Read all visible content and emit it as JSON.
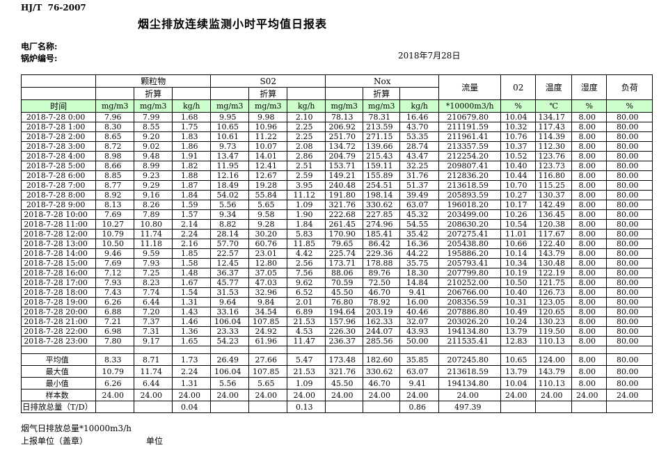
{
  "page": {
    "standard": "HJ/T  76-2007",
    "title": "烟尘排放连续监测小时平均值日报表",
    "plant_label": "电厂名称:",
    "boiler_label": "锅炉编号:",
    "date": "2018年7月28日"
  },
  "table": {
    "time_header": "时间",
    "groups": [
      {
        "label": "颗粒物",
        "sub": "折算"
      },
      {
        "label": "S02",
        "sub": "折算"
      },
      {
        "label": "Nox",
        "sub": "折算"
      }
    ],
    "single_cols": [
      {
        "label": "流量",
        "unit": "*10000m3/h"
      },
      {
        "label": "02",
        "unit": "%"
      },
      {
        "label": "温度",
        "unit": "℃"
      },
      {
        "label": "湿度",
        "unit": "%"
      },
      {
        "label": "负荷",
        "unit": "%"
      }
    ],
    "units": [
      "mg/m3",
      "mg/m3",
      "kg/h",
      "mg/m3",
      "mg/m3",
      "kg/h",
      "mg/m3",
      "mg/m3",
      "kg/h",
      "*10000m3/h",
      "%",
      "℃",
      "%",
      "%"
    ],
    "rows": [
      {
        "time": "2018-7-28 0:00",
        "values": [
          "7.96",
          "7.99",
          "1.68",
          "9.95",
          "9.98",
          "2.10",
          "78.13",
          "78.31",
          "16.46",
          "210679.80",
          "10.04",
          "134.17",
          "8.00",
          "80.00"
        ]
      },
      {
        "time": "2018-7-28 1:00",
        "values": [
          "8.30",
          "8.55",
          "1.75",
          "10.65",
          "10.96",
          "2.25",
          "206.92",
          "213.59",
          "43.70",
          "211191.59",
          "10.32",
          "117.43",
          "8.00",
          "80.00"
        ]
      },
      {
        "time": "2018-7-28 2:00",
        "values": [
          "8.65",
          "9.20",
          "1.83",
          "10.61",
          "11.22",
          "2.25",
          "251.70",
          "271.15",
          "53.35",
          "211961.41",
          "10.76",
          "114.39",
          "8.00",
          "80.00"
        ]
      },
      {
        "time": "2018-7-28 3:00",
        "values": [
          "8.72",
          "9.02",
          "1.86",
          "9.73",
          "10.07",
          "2.08",
          "134.72",
          "139.66",
          "28.74",
          "213357.59",
          "10.37",
          "112.30",
          "8.00",
          "80.00"
        ]
      },
      {
        "time": "2018-7-28 4:00",
        "values": [
          "8.98",
          "9.48",
          "1.91",
          "13.47",
          "14.01",
          "2.86",
          "204.79",
          "215.43",
          "43.47",
          "212254.20",
          "10.52",
          "123.76",
          "8.00",
          "80.00"
        ]
      },
      {
        "time": "2018-7-28 5:00",
        "values": [
          "8.66",
          "8.99",
          "1.82",
          "11.95",
          "12.41",
          "2.51",
          "153.71",
          "159.11",
          "32.25",
          "209807.41",
          "10.40",
          "123.73",
          "8.00",
          "80.00"
        ]
      },
      {
        "time": "2018-7-28 6:00",
        "values": [
          "8.85",
          "9.23",
          "1.88",
          "12.16",
          "12.67",
          "2.59",
          "149.21",
          "155.89",
          "31.76",
          "212836.20",
          "10.44",
          "116.80",
          "8.00",
          "80.00"
        ]
      },
      {
        "time": "2018-7-28 7:00",
        "values": [
          "8.77",
          "9.29",
          "1.87",
          "18.49",
          "19.28",
          "3.95",
          "240.48",
          "254.51",
          "51.37",
          "213618.59",
          "10.70",
          "115.25",
          "8.00",
          "80.00"
        ]
      },
      {
        "time": "2018-7-28 8:00",
        "values": [
          "8.92",
          "9.16",
          "1.84",
          "54.02",
          "55.84",
          "11.12",
          "191.80",
          "198.14",
          "39.49",
          "205893.59",
          "10.27",
          "130.37",
          "8.00",
          "80.00"
        ]
      },
      {
        "time": "2018-7-28 9:00",
        "values": [
          "8.13",
          "8.26",
          "1.59",
          "5.56",
          "5.65",
          "1.09",
          "321.76",
          "330.62",
          "63.07",
          "196018.20",
          "10.17",
          "142.49",
          "8.00",
          "80.00"
        ]
      },
      {
        "time": "2018-7-28 10:00",
        "values": [
          "7.69",
          "7.89",
          "1.57",
          "9.34",
          "9.58",
          "1.90",
          "222.68",
          "227.85",
          "45.32",
          "203499.00",
          "10.26",
          "136.45",
          "8.00",
          "80.00"
        ]
      },
      {
        "time": "2018-7-28 11:00",
        "values": [
          "10.27",
          "10.80",
          "2.14",
          "8.82",
          "9.28",
          "1.84",
          "261.45",
          "274.96",
          "54.55",
          "208630.20",
          "10.54",
          "120.38",
          "8.00",
          "80.00"
        ]
      },
      {
        "time": "2018-7-28 12:00",
        "values": [
          "10.79",
          "11.74",
          "2.24",
          "28.14",
          "30.20",
          "5.83",
          "170.90",
          "185.41",
          "35.42",
          "207275.41",
          "11.01",
          "117.67",
          "8.00",
          "80.00"
        ]
      },
      {
        "time": "2018-7-28 13:00",
        "values": [
          "10.50",
          "11.18",
          "2.16",
          "57.70",
          "60.76",
          "11.85",
          "79.65",
          "86.42",
          "16.36",
          "205438.80",
          "10.66",
          "122.40",
          "8.00",
          "80.00"
        ]
      },
      {
        "time": "2018-7-28 14:00",
        "values": [
          "9.46",
          "9.59",
          "1.85",
          "22.57",
          "23.01",
          "4.42",
          "225.74",
          "229.36",
          "44.22",
          "195886.20",
          "10.14",
          "143.79",
          "8.00",
          "80.00"
        ]
      },
      {
        "time": "2018-7-28 15:00",
        "values": [
          "7.69",
          "7.93",
          "1.58",
          "12.45",
          "12.80",
          "2.56",
          "173.71",
          "178.88",
          "35.75",
          "205793.41",
          "10.34",
          "130.48",
          "8.00",
          "80.00"
        ]
      },
      {
        "time": "2018-7-28 16:00",
        "values": [
          "7.12",
          "7.25",
          "1.48",
          "36.37",
          "37.05",
          "7.56",
          "88.06",
          "89.76",
          "18.30",
          "207799.80",
          "10.19",
          "122.19",
          "8.00",
          "80.00"
        ]
      },
      {
        "time": "2018-7-28 17:00",
        "values": [
          "7.93",
          "8.23",
          "1.67",
          "45.77",
          "47.03",
          "9.62",
          "70.59",
          "72.50",
          "14.84",
          "210252.00",
          "10.50",
          "121.75",
          "8.00",
          "80.00"
        ]
      },
      {
        "time": "2018-7-28 18:00",
        "values": [
          "7.43",
          "7.74",
          "1.54",
          "31.53",
          "32.96",
          "6.52",
          "45.50",
          "46.70",
          "9.41",
          "206766.00",
          "10.40",
          "126.73",
          "8.00",
          "80.00"
        ]
      },
      {
        "time": "2018-7-28 19:00",
        "values": [
          "6.26",
          "6.44",
          "1.31",
          "9.64",
          "9.84",
          "2.01",
          "76.80",
          "78.92",
          "16.00",
          "208356.59",
          "10.31",
          "123.05",
          "8.00",
          "80.00"
        ]
      },
      {
        "time": "2018-7-28 20:00",
        "values": [
          "6.88",
          "7.20",
          "1.43",
          "33.16",
          "34.54",
          "6.89",
          "194.64",
          "203.19",
          "40.46",
          "207886.80",
          "10.49",
          "120.65",
          "8.00",
          "80.00"
        ]
      },
      {
        "time": "2018-7-28 21:00",
        "values": [
          "7.21",
          "7.37",
          "1.46",
          "106.04",
          "107.85",
          "21.53",
          "157.96",
          "162.33",
          "32.07",
          "203026.20",
          "10.24",
          "130.23",
          "8.00",
          "80.00"
        ]
      },
      {
        "time": "2018-7-28 22:00",
        "values": [
          "6.98",
          "7.31",
          "1.36",
          "23.33",
          "24.92",
          "4.53",
          "226.30",
          "244.07",
          "43.93",
          "194134.80",
          "13.79",
          "119.50",
          "8.00",
          "80.00"
        ]
      },
      {
        "time": "2018-7-28 23:00",
        "values": [
          "7.80",
          "9.17",
          "1.65",
          "54.23",
          "61.96",
          "11.47",
          "236.37",
          "285.56",
          "50.00",
          "211535.41",
          "12.83",
          "110.13",
          "8.00",
          "80.00"
        ]
      }
    ],
    "summary": [
      {
        "label": "平均值",
        "align": "right",
        "values": [
          "8.33",
          "8.71",
          "1.73",
          "26.49",
          "27.66",
          "5.47",
          "173.48",
          "182.60",
          "35.85",
          "207245.80",
          "10.65",
          "124.00",
          "8.00",
          "80.00"
        ]
      },
      {
        "label": "最大值",
        "align": "right",
        "values": [
          "10.79",
          "11.74",
          "2.24",
          "106.04",
          "107.85",
          "21.53",
          "321.76",
          "330.62",
          "63.07",
          "213618.59",
          "13.79",
          "143.79",
          "8.00",
          "80.00"
        ]
      },
      {
        "label": "最小值",
        "align": "right",
        "values": [
          "6.26",
          "6.44",
          "1.31",
          "5.56",
          "5.65",
          "1.09",
          "45.50",
          "46.70",
          "9.41",
          "194134.80",
          "10.04",
          "110.13",
          "8.00",
          "80.00"
        ]
      },
      {
        "label": "样本数",
        "align": "right",
        "values": [
          "24.00",
          "24.00",
          "24.00",
          "24.00",
          "24.00",
          "24.00",
          "24.00",
          "24.00",
          "24.00",
          "24.00",
          "24.00",
          "24.00",
          "24.00",
          "24.00"
        ]
      },
      {
        "label": "日排放总量（T/D）",
        "align": "left",
        "values": [
          "",
          "",
          "0.04",
          "",
          "",
          "0.13",
          "",
          "",
          "0.86",
          "497.39",
          "",
          "",
          "",
          ""
        ]
      }
    ]
  },
  "footer": {
    "flow_note": "烟气日排放总量*10000m3/h",
    "report_unit": "上报单位（盖章）",
    "unit": "单位"
  },
  "colors": {
    "header_green": "#ccffcc",
    "border": "#000000"
  }
}
